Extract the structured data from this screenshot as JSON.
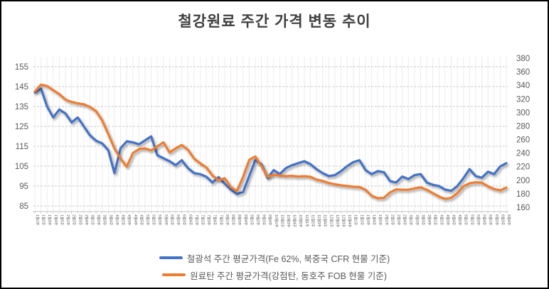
{
  "chart_data": {
    "type": "line",
    "title": "철강원료 주간 가격 변동 추이",
    "legend_position": "bottom",
    "grid": {
      "vertical": true,
      "horizontal_dashed": true
    },
    "left_axis": {
      "min": 85,
      "max": 155,
      "step": 10,
      "ticks": [
        155,
        145,
        135,
        125,
        115,
        105,
        95,
        85
      ]
    },
    "right_axis": {
      "min": 160,
      "max": 380,
      "step": 20,
      "ticks": [
        380,
        360,
        340,
        320,
        300,
        280,
        260,
        240,
        220,
        200,
        180,
        160
      ]
    },
    "x_labels": [
      "1월1주",
      "1월2주",
      "1월3주",
      "1월4주",
      "1월5주",
      "2월1주",
      "2월2주",
      "2월3주",
      "2월4주",
      "3월1주",
      "3월2주",
      "3월3주",
      "3월4주",
      "4월1주",
      "4월2주",
      "4월3주",
      "4월4주",
      "4월5주",
      "5월1주",
      "5월2주",
      "5월3주",
      "5월4주",
      "6월1주",
      "6월2주",
      "6월3주",
      "6월4주",
      "7월1주",
      "7월2주",
      "7월3주",
      "7월4주",
      "7월5주",
      "8월1주",
      "8월2주",
      "8월3주",
      "8월4주",
      "9월1주",
      "9월2주",
      "9월3주",
      "9월4주",
      "10월1주",
      "10월2주",
      "10월3주",
      "10월4주",
      "10월5주",
      "11월1주",
      "11월2주",
      "11월3주",
      "11월4주",
      "12월1주",
      "12월2주",
      "12월3주",
      "12월4주",
      "1월1주",
      "1월2주",
      "1월3주",
      "1월4주",
      "1월5주",
      "2월1주",
      "2월2주",
      "2월3주",
      "2월4주",
      "3월1주",
      "3월2주",
      "3월3주",
      "3월4주",
      "4월1주",
      "4월2주",
      "4월3주",
      "4월4주",
      "4월5주",
      "5월1주",
      "5월2주",
      "5월3주",
      "5월4주",
      "6월1주",
      "6월2주",
      "6월3주",
      "6월4주"
    ],
    "series": [
      {
        "name": "철광석 주간 평균가격(Fe 62%, 북중국 CFR 현물 기준)",
        "axis": "left",
        "color": "#4472C4",
        "values": [
          142,
          144,
          135,
          129.5,
          133.5,
          131.5,
          127,
          129.5,
          125,
          120.5,
          117.8,
          116.5,
          113,
          101.5,
          114,
          117.5,
          117,
          116,
          118,
          120,
          110.5,
          109,
          107.5,
          105.5,
          108,
          104,
          101.5,
          101,
          99.7,
          96.8,
          99.5,
          96.2,
          93.2,
          91,
          92,
          100,
          108,
          106,
          99,
          103,
          101,
          104,
          105.5,
          106.5,
          107.5,
          106,
          103.5,
          101.5,
          100,
          100.5,
          102.5,
          105,
          107,
          108,
          103,
          101,
          102.5,
          102,
          97.5,
          96.8,
          99.8,
          98.5,
          100.5,
          101,
          96.8,
          95.6,
          95,
          93.2,
          92.6,
          95,
          99,
          103.5,
          100,
          99.2,
          102.2,
          101,
          104.9,
          106.5
        ]
      },
      {
        "name": "원료탄 주간 평균가격(강점탄, 동호주 FOB 현물 기준)",
        "axis": "right",
        "color": "#ED7D31",
        "values": [
          331,
          341,
          339,
          333,
          327,
          319,
          315.5,
          313.5,
          312,
          308,
          302,
          288,
          268,
          247,
          232,
          220,
          240,
          246,
          247,
          244,
          250,
          256,
          241,
          247,
          252,
          245,
          232,
          225,
          219,
          207,
          200,
          203,
          190,
          184,
          205,
          230,
          235,
          221,
          205,
          208,
          207,
          206,
          206.5,
          205.5,
          206,
          205,
          201,
          199,
          196,
          194,
          192.5,
          191.5,
          190.5,
          190,
          186,
          177,
          173.5,
          174,
          182,
          186.5,
          186,
          186,
          188,
          189.5,
          186,
          181,
          176,
          172.5,
          174,
          181,
          191,
          195.5,
          197,
          196.5,
          191,
          187,
          185,
          189
        ]
      }
    ]
  }
}
